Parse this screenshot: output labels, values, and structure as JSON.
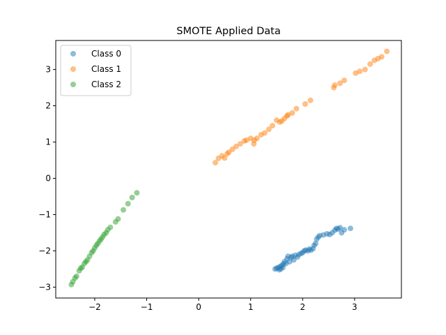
{
  "chart_data": {
    "type": "scatter",
    "title": "SMOTE Applied Data",
    "xlabel": "",
    "ylabel": "",
    "xlim": [
      -2.75,
      3.9
    ],
    "ylim": [
      -3.3,
      3.8
    ],
    "xticks": [
      -2,
      -1,
      0,
      1,
      2,
      3
    ],
    "yticks": [
      -3,
      -2,
      -1,
      0,
      1,
      2,
      3
    ],
    "xtick_labels": [
      "−2",
      "−1",
      "0",
      "1",
      "2",
      "3"
    ],
    "ytick_labels": [
      "−3",
      "−2",
      "−1",
      "0",
      "1",
      "2",
      "3"
    ],
    "grid": false,
    "legend_position": "top-left",
    "series": [
      {
        "name": "Class 0",
        "color": "#1f77b4",
        "points": [
          [
            1.47,
            -2.5
          ],
          [
            1.5,
            -2.48
          ],
          [
            1.53,
            -2.46
          ],
          [
            1.55,
            -2.52
          ],
          [
            1.57,
            -2.43
          ],
          [
            1.58,
            -2.5
          ],
          [
            1.6,
            -2.4
          ],
          [
            1.62,
            -2.46
          ],
          [
            1.63,
            -2.36
          ],
          [
            1.65,
            -2.3
          ],
          [
            1.68,
            -2.35
          ],
          [
            1.7,
            -2.22
          ],
          [
            1.72,
            -2.15
          ],
          [
            1.75,
            -2.3
          ],
          [
            1.78,
            -2.18
          ],
          [
            1.8,
            -2.15
          ],
          [
            1.83,
            -2.25
          ],
          [
            1.86,
            -2.12
          ],
          [
            1.9,
            -2.17
          ],
          [
            1.93,
            -2.1
          ],
          [
            1.97,
            -2.07
          ],
          [
            2.0,
            -2.05
          ],
          [
            2.03,
            -2.0
          ],
          [
            2.06,
            -1.98
          ],
          [
            2.1,
            -2.0
          ],
          [
            2.13,
            -1.95
          ],
          [
            2.16,
            -1.98
          ],
          [
            2.2,
            -1.94
          ],
          [
            2.22,
            -1.85
          ],
          [
            2.25,
            -1.8
          ],
          [
            2.27,
            -1.68
          ],
          [
            2.3,
            -1.62
          ],
          [
            2.33,
            -1.58
          ],
          [
            2.4,
            -1.56
          ],
          [
            2.47,
            -1.53
          ],
          [
            2.52,
            -1.55
          ],
          [
            2.57,
            -1.5
          ],
          [
            2.62,
            -1.43
          ],
          [
            2.65,
            -1.38
          ],
          [
            2.68,
            -1.4
          ],
          [
            2.72,
            -1.36
          ],
          [
            2.75,
            -1.5
          ],
          [
            2.8,
            -1.42
          ],
          [
            2.92,
            -1.38
          ]
        ]
      },
      {
        "name": "Class 1",
        "color": "#ff7f0e",
        "points": [
          [
            0.32,
            0.43
          ],
          [
            0.38,
            0.55
          ],
          [
            0.45,
            0.62
          ],
          [
            0.5,
            0.56
          ],
          [
            0.55,
            0.68
          ],
          [
            0.58,
            0.72
          ],
          [
            0.65,
            0.8
          ],
          [
            0.72,
            0.88
          ],
          [
            0.8,
            0.95
          ],
          [
            0.88,
            1.03
          ],
          [
            0.92,
            1.05
          ],
          [
            1.0,
            1.1
          ],
          [
            1.06,
            0.95
          ],
          [
            1.07,
            1.05
          ],
          [
            1.12,
            1.1
          ],
          [
            1.2,
            1.2
          ],
          [
            1.27,
            1.25
          ],
          [
            1.35,
            1.35
          ],
          [
            1.42,
            1.45
          ],
          [
            1.5,
            1.6
          ],
          [
            1.56,
            1.55
          ],
          [
            1.6,
            1.58
          ],
          [
            1.65,
            1.65
          ],
          [
            1.7,
            1.72
          ],
          [
            1.72,
            1.75
          ],
          [
            1.8,
            1.8
          ],
          [
            1.88,
            1.92
          ],
          [
            2.05,
            2.05
          ],
          [
            2.15,
            2.15
          ],
          [
            2.6,
            2.5
          ],
          [
            2.62,
            2.57
          ],
          [
            2.72,
            2.62
          ],
          [
            2.8,
            2.7
          ],
          [
            3.02,
            2.9
          ],
          [
            3.1,
            2.95
          ],
          [
            3.2,
            3.0
          ],
          [
            3.3,
            3.15
          ],
          [
            3.38,
            3.25
          ],
          [
            3.45,
            3.3
          ],
          [
            3.52,
            3.35
          ],
          [
            3.62,
            3.5
          ]
        ]
      },
      {
        "name": "Class 2",
        "color": "#2ca02c",
        "points": [
          [
            -2.45,
            -2.93
          ],
          [
            -2.42,
            -2.85
          ],
          [
            -2.38,
            -2.75
          ],
          [
            -2.35,
            -2.7
          ],
          [
            -2.3,
            -2.55
          ],
          [
            -2.27,
            -2.48
          ],
          [
            -2.24,
            -2.45
          ],
          [
            -2.2,
            -2.35
          ],
          [
            -2.17,
            -2.3
          ],
          [
            -2.14,
            -2.25
          ],
          [
            -2.1,
            -2.15
          ],
          [
            -2.06,
            -2.05
          ],
          [
            -2.03,
            -2.0
          ],
          [
            -2.0,
            -1.92
          ],
          [
            -1.97,
            -1.85
          ],
          [
            -1.94,
            -1.8
          ],
          [
            -1.91,
            -1.73
          ],
          [
            -1.88,
            -1.68
          ],
          [
            -1.85,
            -1.62
          ],
          [
            -1.82,
            -1.55
          ],
          [
            -1.78,
            -1.5
          ],
          [
            -1.75,
            -1.42
          ],
          [
            -1.7,
            -1.35
          ],
          [
            -1.6,
            -1.2
          ],
          [
            -1.55,
            -1.12
          ],
          [
            -1.45,
            -0.87
          ],
          [
            -1.36,
            -0.7
          ],
          [
            -1.28,
            -0.53
          ],
          [
            -1.19,
            -0.4
          ]
        ]
      }
    ]
  }
}
